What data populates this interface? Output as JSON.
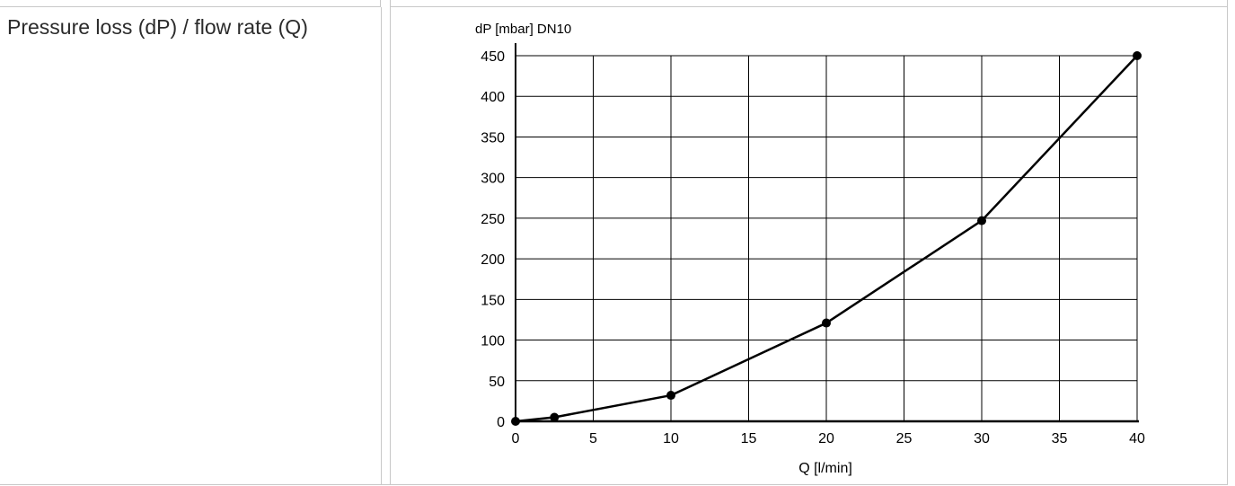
{
  "row": {
    "label": "Pressure loss (dP) / flow rate (Q)"
  },
  "chart_data": {
    "type": "line",
    "title": "",
    "ylabel": "dP [mbar] DN10",
    "xlabel": "Q [l/min]",
    "x": [
      0,
      2.5,
      10,
      20,
      30,
      40
    ],
    "series": [
      {
        "values": [
          0,
          5,
          32,
          121,
          247,
          450
        ]
      }
    ],
    "xlim": [
      0,
      40
    ],
    "ylim": [
      0,
      450
    ],
    "xticks": [
      0,
      5,
      10,
      15,
      20,
      25,
      30,
      35,
      40
    ],
    "yticks": [
      0,
      50,
      100,
      150,
      200,
      250,
      300,
      350,
      400,
      450
    ],
    "grid": true,
    "line_color": "#000000",
    "marker": "filled-circle"
  }
}
